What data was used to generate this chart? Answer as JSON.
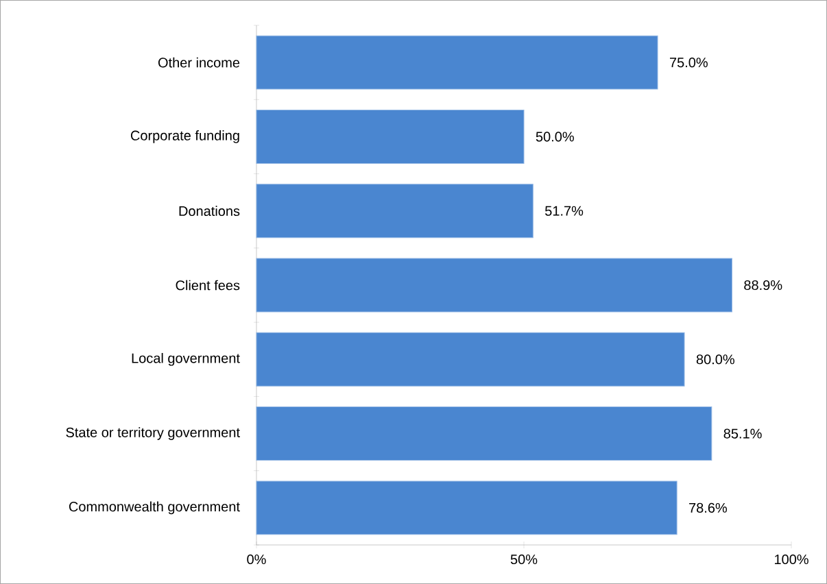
{
  "chart_data": {
    "type": "bar",
    "orientation": "horizontal",
    "categories": [
      "Other income",
      "Corporate funding",
      "Donations",
      "Client fees",
      "Local government",
      "State or territory government",
      "Commonwealth government"
    ],
    "values": [
      75.0,
      50.0,
      51.7,
      88.9,
      80.0,
      85.1,
      78.6
    ],
    "value_labels": [
      "75.0%",
      "50.0%",
      "51.7%",
      "88.9%",
      "80.0%",
      "85.1%",
      "78.6%"
    ],
    "color": "#4a86d0",
    "xlim": [
      0,
      100
    ],
    "xticks": [
      {
        "value": 0,
        "label": "0%"
      },
      {
        "value": 50,
        "label": "50%"
      },
      {
        "value": 100,
        "label": "100%"
      }
    ]
  }
}
